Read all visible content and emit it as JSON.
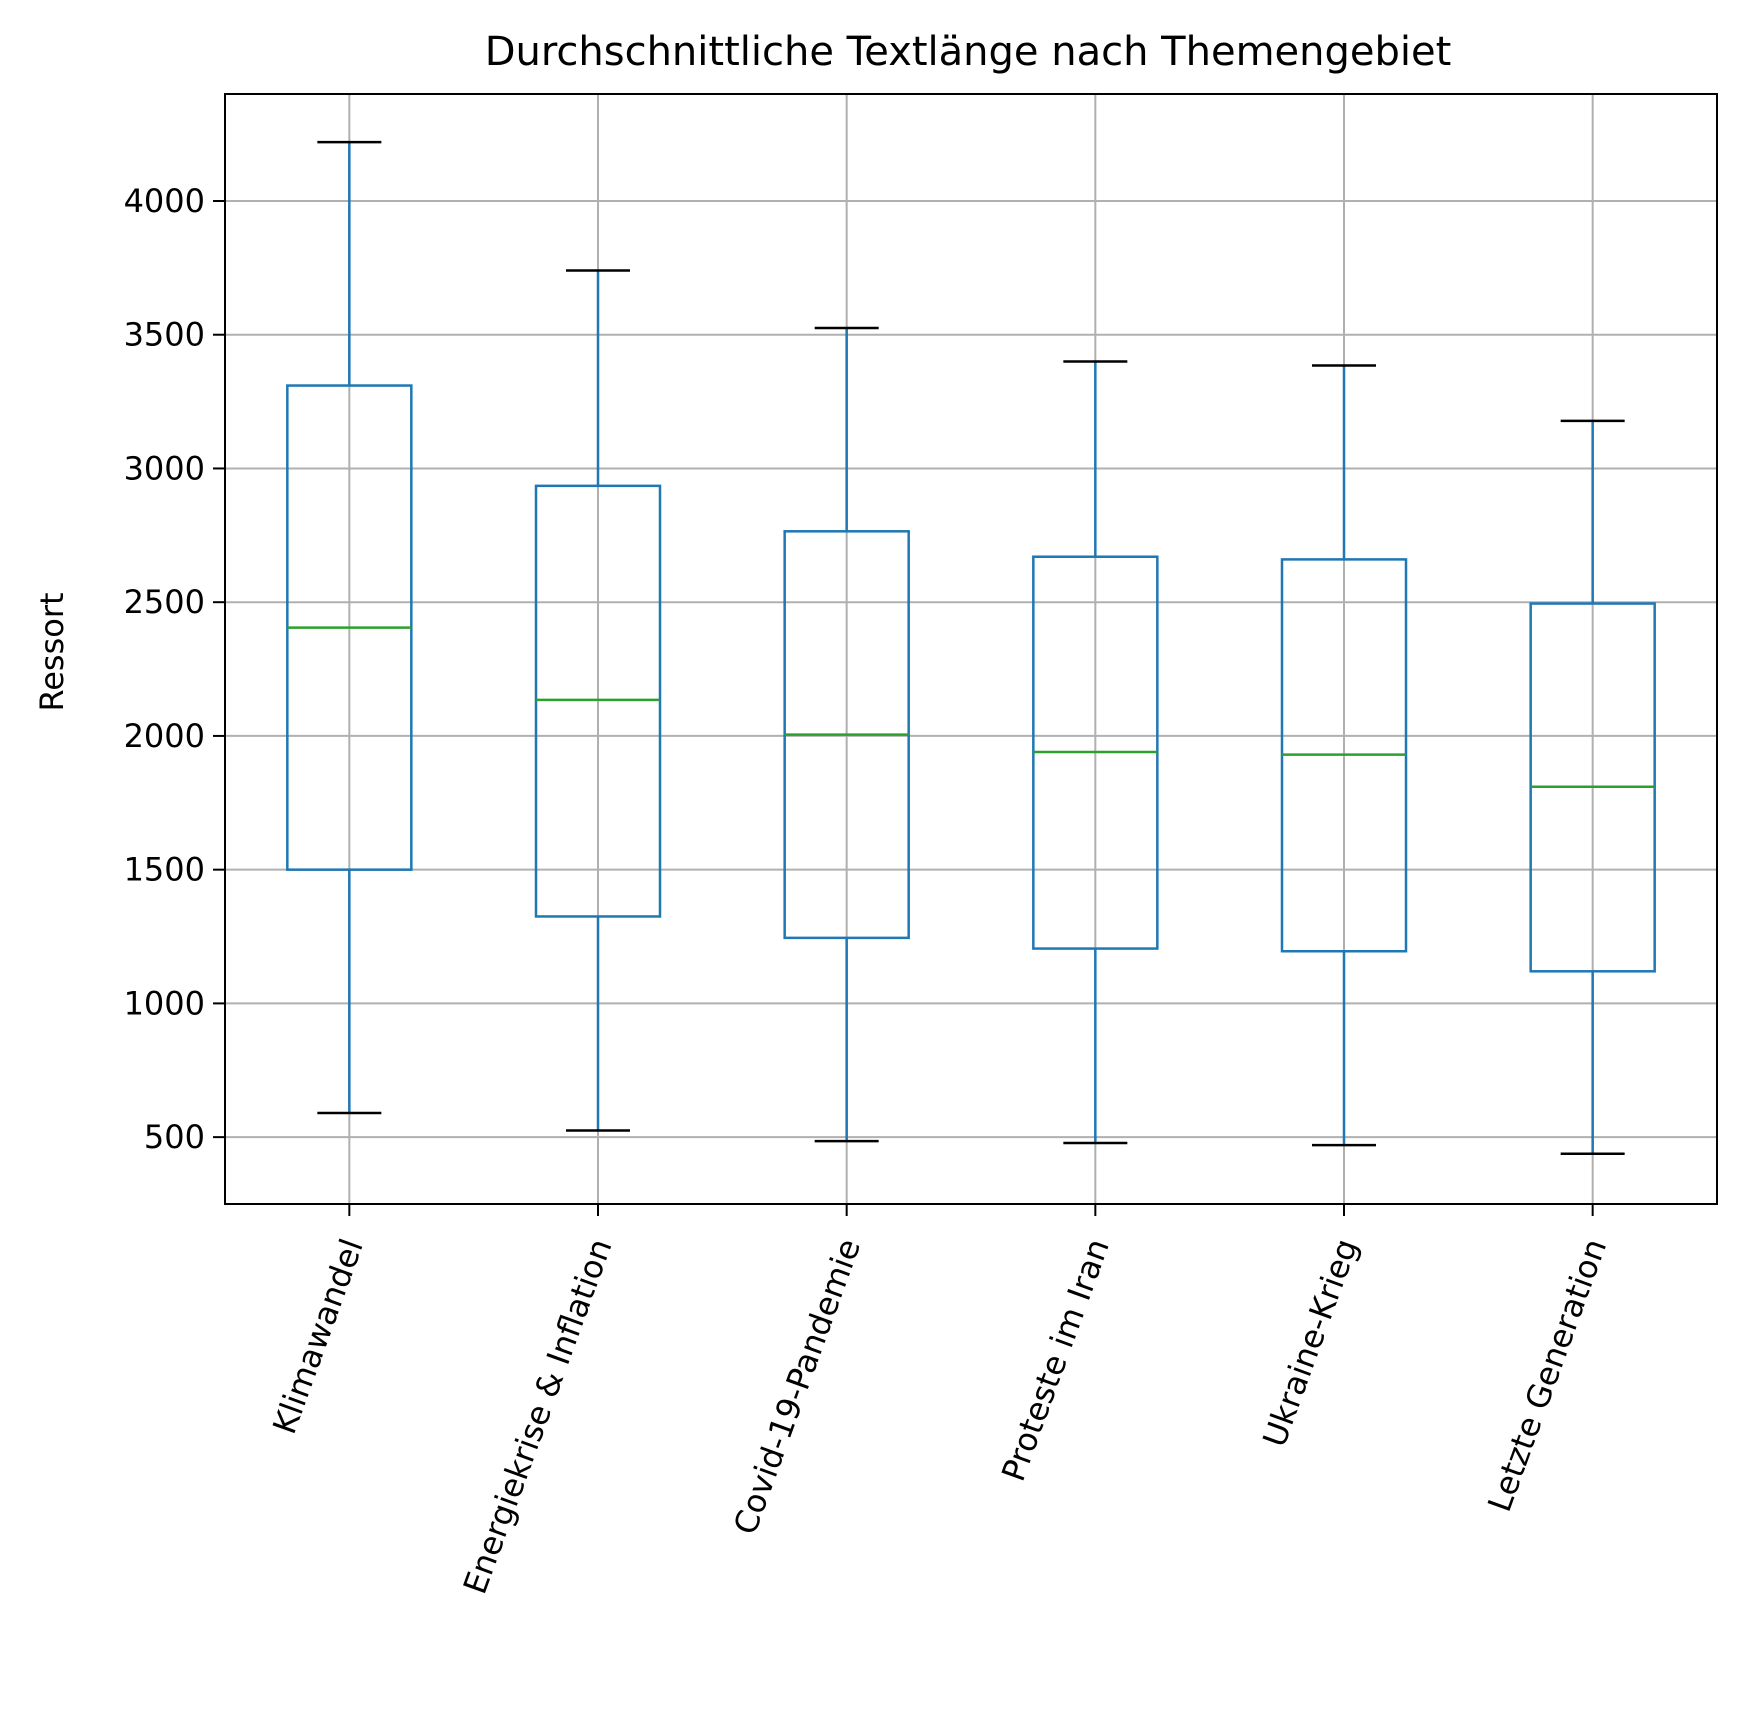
{
  "chart_data": {
    "type": "box",
    "title": "Durchschnittliche Textlänge nach Themengebiet",
    "xlabel": "",
    "ylabel": "Ressort",
    "ylim": [
      250,
      4400
    ],
    "yticks": [
      500,
      1000,
      1500,
      2000,
      2500,
      3000,
      3500,
      4000
    ],
    "grid": true,
    "colors": {
      "box": "#1f77b4",
      "median": "#2ca02c",
      "cap": "#000000",
      "grid": "#b0b0b0"
    },
    "categories": [
      "Klimawandel",
      "Energiekrise & Inflation",
      "Covid-19-Pandemie",
      "Proteste im Iran",
      "Ukraine-Krieg",
      "Letzte Generation"
    ],
    "boxes": [
      {
        "whisker_low": 590,
        "q1": 1500,
        "median": 2405,
        "q3": 3310,
        "whisker_high": 4220
      },
      {
        "whisker_low": 525,
        "q1": 1325,
        "median": 2135,
        "q3": 2935,
        "whisker_high": 3740
      },
      {
        "whisker_low": 485,
        "q1": 1245,
        "median": 2005,
        "q3": 2765,
        "whisker_high": 3525
      },
      {
        "whisker_low": 478,
        "q1": 1205,
        "median": 1940,
        "q3": 2670,
        "whisker_high": 3400
      },
      {
        "whisker_low": 470,
        "q1": 1195,
        "median": 1930,
        "q3": 2660,
        "whisker_high": 3385
      },
      {
        "whisker_low": 438,
        "q1": 1120,
        "median": 1810,
        "q3": 2495,
        "whisker_high": 3178
      }
    ]
  }
}
